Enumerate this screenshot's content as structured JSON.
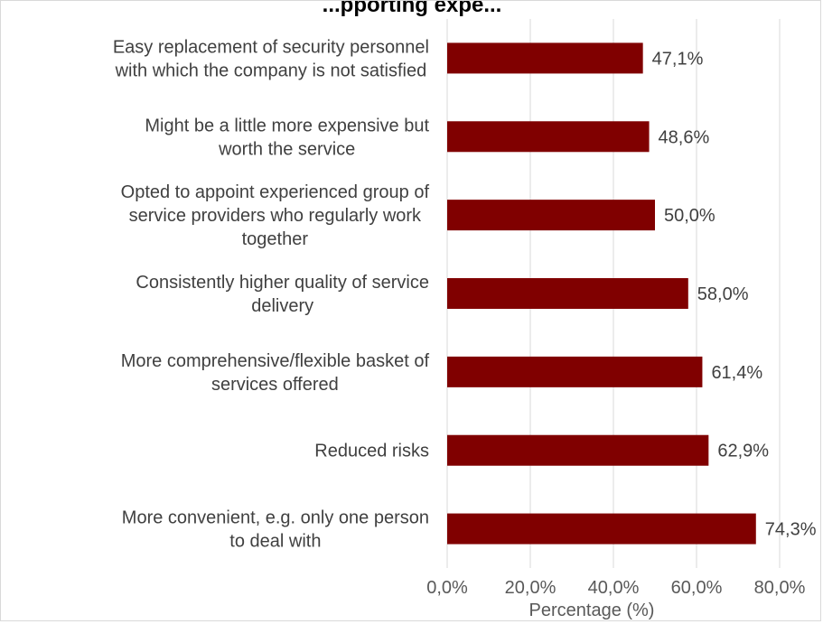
{
  "chart_data": {
    "type": "bar",
    "orientation": "horizontal",
    "title": "...pporting expe...",
    "categories": [
      [
        "Easy replacement of security personnel",
        "with which the company is not satisfied"
      ],
      [
        "Might be a little more expensive but",
        "worth the service"
      ],
      [
        "Opted to appoint experienced group of",
        "service providers who regularly work",
        "together"
      ],
      [
        "Consistently higher quality of service",
        "delivery"
      ],
      [
        "More comprehensive/flexible basket of",
        "services offered"
      ],
      [
        "Reduced risks"
      ],
      [
        "More convenient, e.g. only one person",
        "to deal with"
      ]
    ],
    "values": [
      47.1,
      48.6,
      50.0,
      58.0,
      61.4,
      62.9,
      74.3
    ],
    "value_labels": [
      "47,1%",
      "48,6%",
      "50,0%",
      "58,0%",
      "61,4%",
      "62,9%",
      "74,3%"
    ],
    "xlabel": "Percentage (%)",
    "ylabel": "",
    "xlim": [
      0,
      80
    ],
    "x_ticks": [
      0,
      20,
      40,
      60,
      80
    ],
    "x_tick_labels": [
      "0,0%",
      "20,0%",
      "40,0%",
      "60,0%",
      "80,0%"
    ],
    "grid": true,
    "legend": "none",
    "colors": {
      "bar": "#800000",
      "gridline": "#d9d9d9",
      "text": "#404040"
    }
  }
}
